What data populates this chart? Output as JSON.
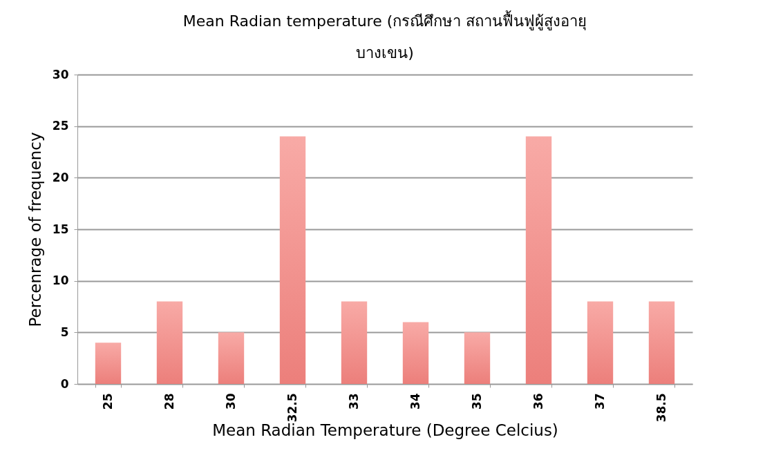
{
  "chart_data": {
    "type": "bar",
    "title": "Mean Radian temperature (กรณีศึกษา สถานฟื้นฟูผู้สูงอายุ บางเขน)",
    "xlabel": "Mean Radian Temperature (Degree Celcius)",
    "ylabel": "Percenrage of frequency",
    "categories": [
      "25",
      "28",
      "30",
      "32.5",
      "33",
      "34",
      "35",
      "36",
      "37",
      "38.5"
    ],
    "values": [
      4,
      8,
      5,
      24,
      8,
      6,
      5,
      24,
      8,
      8
    ],
    "color": "#ec7f7b",
    "ylim": [
      0,
      30
    ],
    "yticks": [
      0,
      5,
      10,
      15,
      20,
      25,
      30
    ],
    "grid": "y",
    "legend": false
  }
}
